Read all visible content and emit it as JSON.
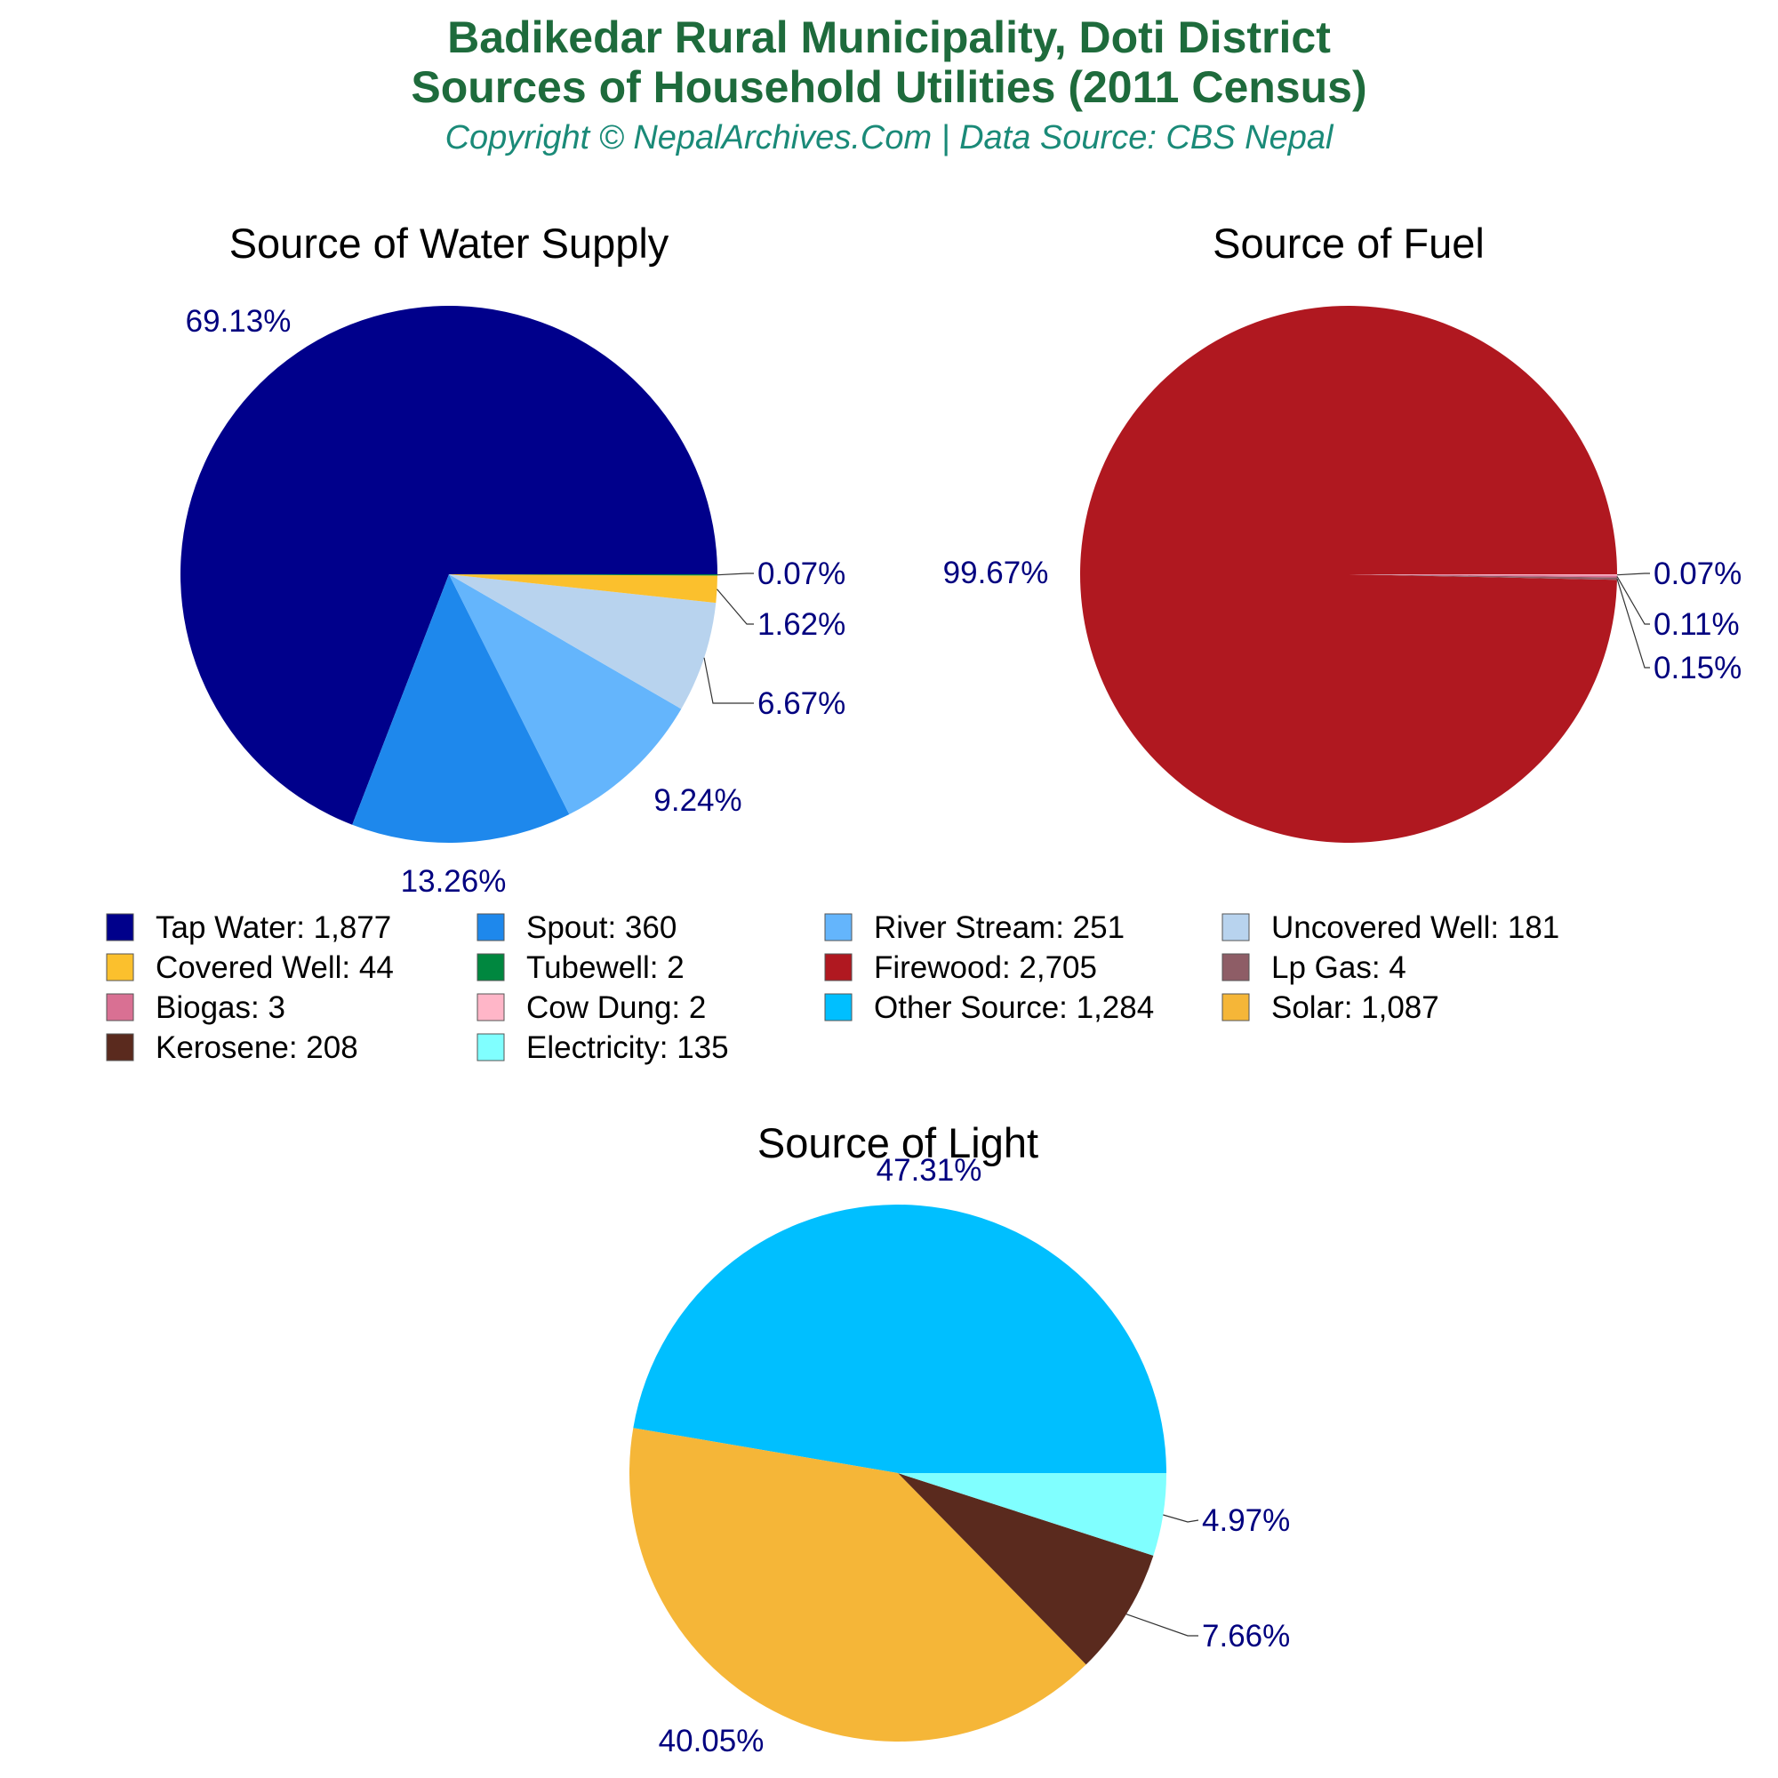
{
  "header": {
    "title_line1": "Badikedar Rural Municipality, Doti District",
    "title_line2": "Sources of Household Utilities (2011 Census)",
    "subtitle": "Copyright © NepalArchives.Com | Data Source: CBS Nepal"
  },
  "chart_data": [
    {
      "type": "pie",
      "title": "Source of Water Supply",
      "labels": [
        "Tap Water",
        "Spout",
        "River Stream",
        "Uncovered Well",
        "Covered Well",
        "Tubewell"
      ],
      "values": [
        1877,
        360,
        251,
        181,
        44,
        2
      ],
      "percent_labels": [
        "69.13%",
        "13.26%",
        "9.24%",
        "6.67%",
        "1.62%",
        "0.07%"
      ],
      "colors": [
        "#00008b",
        "#1e88ec",
        "#64b5fc",
        "#b8d3ee",
        "#fbc02d",
        "#00873f"
      ]
    },
    {
      "type": "pie",
      "title": "Source of Fuel",
      "labels": [
        "Firewood",
        "Lp Gas",
        "Biogas",
        "Cow Dung"
      ],
      "values": [
        2705,
        4,
        3,
        2
      ],
      "percent_labels": [
        "99.67%",
        "0.15%",
        "0.11%",
        "0.07%"
      ],
      "colors": [
        "#b01820",
        "#8e5d66",
        "#d97093",
        "#ffb6c8"
      ]
    },
    {
      "type": "pie",
      "title": "Source of Light",
      "labels": [
        "Other Source",
        "Solar",
        "Kerosene",
        "Electricity"
      ],
      "values": [
        1284,
        1087,
        208,
        135
      ],
      "percent_labels": [
        "47.31%",
        "40.05%",
        "7.66%",
        "4.97%"
      ],
      "colors": [
        "#00bfff",
        "#f5b638",
        "#5a2a1e",
        "#80ffff"
      ]
    }
  ],
  "legend": [
    {
      "label": "Tap Water: 1,877",
      "color": "#00008b"
    },
    {
      "label": "Spout: 360",
      "color": "#1e88ec"
    },
    {
      "label": "River Stream: 251",
      "color": "#64b5fc"
    },
    {
      "label": "Uncovered Well: 181",
      "color": "#b8d3ee"
    },
    {
      "label": "Covered Well: 44",
      "color": "#fbc02d"
    },
    {
      "label": "Tubewell: 2",
      "color": "#00873f"
    },
    {
      "label": "Firewood: 2,705",
      "color": "#b01820"
    },
    {
      "label": "Lp Gas: 4",
      "color": "#8e5d66"
    },
    {
      "label": "Biogas: 3",
      "color": "#d97093"
    },
    {
      "label": "Cow Dung: 2",
      "color": "#ffb6c8"
    },
    {
      "label": "Other Source: 1,284",
      "color": "#00bfff"
    },
    {
      "label": "Solar: 1,087",
      "color": "#f5b638"
    },
    {
      "label": "Kerosene: 208",
      "color": "#5a2a1e"
    },
    {
      "label": "Electricity: 135",
      "color": "#80ffff"
    }
  ]
}
